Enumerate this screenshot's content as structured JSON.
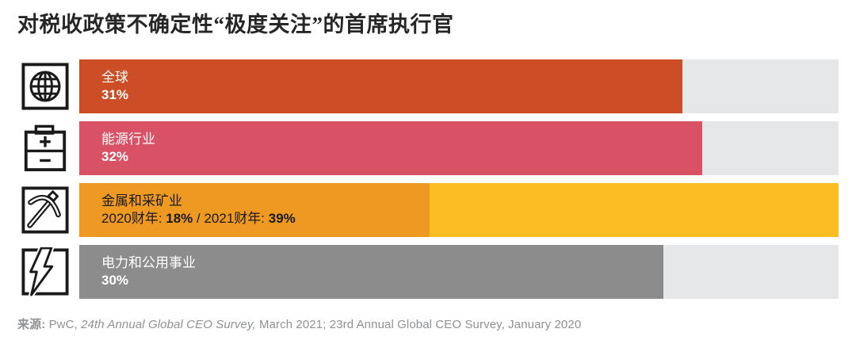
{
  "title": "对税收政策不确定性“极度关注”的首席执行官",
  "source": {
    "label": "来源:",
    "pre": " PwC, ",
    "italic": "24th Annual Global CEO Survey,",
    "post": " March 2021; 23rd Annual Global CEO Survey, January 2020"
  },
  "colors": {
    "track": "#E6E7E9",
    "global_bar": "#CC4D26",
    "energy_bar": "#D85164",
    "mining_2020_bar": "#ED9922",
    "mining_2021_bar": "#FCBD22",
    "utilities_bar": "#8C8C8C",
    "title_text": "#262626",
    "source_text": "#8F9193",
    "icon_stroke": "#1a1a1a"
  },
  "chart_data": {
    "type": "bar",
    "orientation": "horizontal",
    "title": "对税收政策不确定性“极度关注”的首席执行官",
    "unit": "%",
    "axis_max": 39,
    "grid": false,
    "legend": false,
    "bars": [
      {
        "category": "全球",
        "icon": "globe-icon",
        "text_color": "#ffffff",
        "segments": [
          {
            "name": "全球",
            "value": 31,
            "color": "#CC4D26"
          }
        ],
        "value_segments": [
          {
            "text": "31%",
            "bold": true
          }
        ]
      },
      {
        "category": "能源行业",
        "icon": "battery-icon",
        "text_color": "#ffffff",
        "segments": [
          {
            "name": "能源行业",
            "value": 32,
            "color": "#D85164"
          }
        ],
        "value_segments": [
          {
            "text": "32%",
            "bold": true
          }
        ]
      },
      {
        "category": "金属和采矿业",
        "icon": "pickaxe-icon",
        "text_color": "#1a1a1a",
        "segments": [
          {
            "name": "2021财年",
            "value": 39,
            "color": "#FCBD22"
          },
          {
            "name": "2020财年",
            "value": 18,
            "color": "#ED9922"
          }
        ],
        "value_segments": [
          {
            "text": "2020财年: ",
            "bold": false
          },
          {
            "text": "18%",
            "bold": true
          },
          {
            "text": " / ",
            "bold": false
          },
          {
            "text": "2021财年: ",
            "bold": false
          },
          {
            "text": "39%",
            "bold": true
          }
        ]
      },
      {
        "category": "电力和公用事业",
        "icon": "lightning-icon",
        "text_color": "#ffffff",
        "segments": [
          {
            "name": "电力和公用事业",
            "value": 30,
            "color": "#8C8C8C"
          }
        ],
        "value_segments": [
          {
            "text": "30%",
            "bold": true
          }
        ]
      }
    ]
  }
}
